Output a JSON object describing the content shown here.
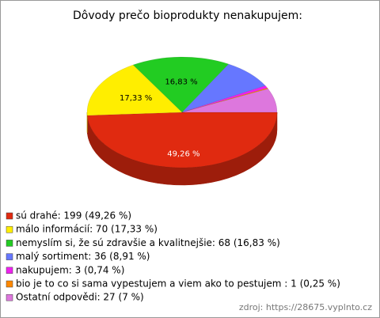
{
  "chart_data": {
    "type": "pie3d",
    "title": "Dôvody prečo bioprodukty nenakupujem:",
    "categories": [
      "sú drahé: 199 (49,26 %)",
      "málo informácií: 70 (17,33 %)",
      "nemyslím si, že sú zdravšie a kvalitnejšie: 68 (16,83 %)",
      "malý sortiment: 36 (8,91 %)",
      "nakupujem: 3 (0,74 %)",
      "bio je to co si sama vypestujem a viem ako to pestujem : 1 (0,25 %)",
      "Ostatní odpovědi: 27 (7 %)"
    ],
    "values": [
      49.26,
      17.33,
      16.83,
      8.91,
      0.74,
      0.25,
      7
    ],
    "value_labels": [
      "49,26 %",
      "17,33 %",
      "16,83 %",
      null,
      null,
      null,
      null
    ],
    "colors": [
      "#e02a10",
      "#ffee00",
      "#22cc22",
      "#6677ff",
      "#ee22ee",
      "#ff8800",
      "#dd77dd"
    ],
    "source": "zdroj: https://28675.vyplnto.cz"
  }
}
